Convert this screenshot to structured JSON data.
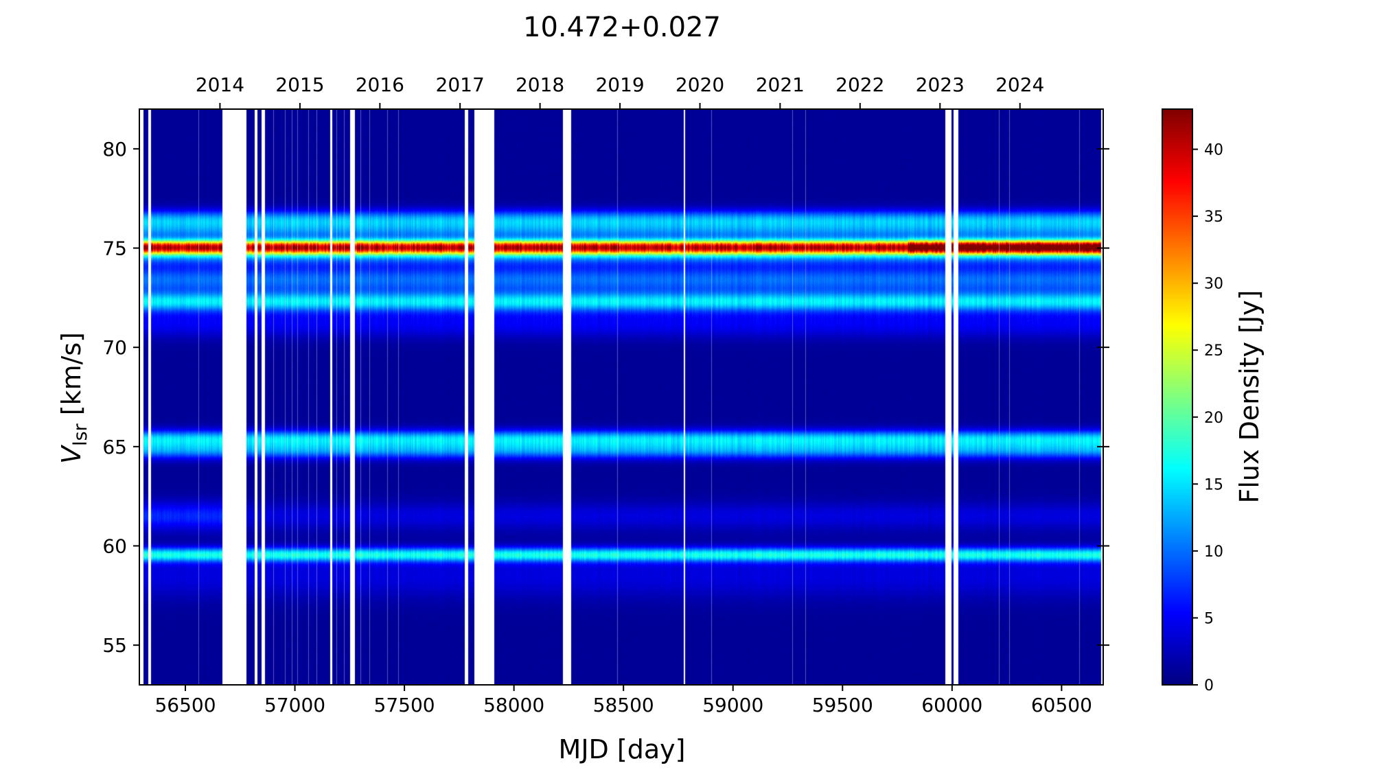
{
  "chart_data": {
    "type": "heatmap",
    "title": "10.472+0.027",
    "xlabel": "MJD [day]",
    "ylabel_main": "V",
    "ylabel_sub": "lsr",
    "ylabel_unit": " [km/s]",
    "colorbar_label": "Flux Density [Jy]",
    "colormap": "jet",
    "xlim": [
      56290,
      60690
    ],
    "ylim": [
      53,
      82
    ],
    "clim": [
      0,
      43
    ],
    "x_ticks": [
      56500,
      57000,
      57500,
      58000,
      58500,
      59000,
      59500,
      60000,
      60500
    ],
    "x_tick_labels": [
      "56500",
      "57000",
      "57500",
      "58000",
      "58500",
      "59000",
      "59500",
      "60000",
      "60500"
    ],
    "y_ticks": [
      55,
      60,
      65,
      70,
      75,
      80
    ],
    "y_tick_labels": [
      "55",
      "60",
      "65",
      "70",
      "75",
      "80"
    ],
    "top_axis": {
      "label_values_mjd": [
        56658,
        57023,
        57388,
        57754,
        58119,
        58484,
        58849,
        59215,
        59580,
        59945,
        60310
      ],
      "labels": [
        "2014",
        "2015",
        "2016",
        "2017",
        "2018",
        "2019",
        "2020",
        "2021",
        "2022",
        "2023",
        "2024"
      ]
    },
    "colorbar_ticks": [
      0,
      5,
      10,
      15,
      20,
      25,
      30,
      35,
      40
    ],
    "colorbar_tick_labels": [
      "0",
      "5",
      "10",
      "15",
      "20",
      "25",
      "30",
      "35",
      "40"
    ],
    "observation_span": [
      56310,
      60680
    ],
    "data_gaps_mjd": [
      [
        56300,
        56310
      ],
      [
        56330,
        56342
      ],
      [
        56668,
        56780
      ],
      [
        56815,
        56830
      ],
      [
        56848,
        56862
      ],
      [
        57160,
        57172
      ],
      [
        57252,
        57275
      ],
      [
        57775,
        57790
      ],
      [
        57820,
        57910
      ],
      [
        58225,
        58262
      ],
      [
        58774,
        58781
      ],
      [
        59970,
        59998
      ],
      [
        60008,
        60028
      ]
    ],
    "sparse_epochs_mjd": [
      56560,
      56900,
      56955,
      56985,
      57010,
      57060,
      57100,
      57190,
      57225,
      57300,
      57340,
      57420,
      57470,
      58470,
      58900,
      59270,
      59330,
      60215,
      60260,
      60580
    ],
    "emission_features": [
      {
        "velocity": 75.05,
        "peak_flux": 33,
        "width": 0.25,
        "note": "brightest feature, rising above 40 Jy after MJD 59800"
      },
      {
        "velocity": 74.7,
        "peak_flux": 10,
        "width": 0.4
      },
      {
        "velocity": 76.4,
        "peak_flux": 12,
        "width": 0.35
      },
      {
        "velocity": 75.8,
        "peak_flux": 7,
        "width": 0.3
      },
      {
        "velocity": 73.4,
        "peak_flux": 9,
        "width": 0.45
      },
      {
        "velocity": 72.3,
        "peak_flux": 14,
        "width": 0.35
      },
      {
        "velocity": 71.2,
        "peak_flux": 4,
        "width": 0.5
      },
      {
        "velocity": 65.4,
        "peak_flux": 13,
        "width": 0.3
      },
      {
        "velocity": 64.8,
        "peak_flux": 10,
        "width": 0.3
      },
      {
        "velocity": 61.5,
        "peak_flux": 6,
        "width": 0.5,
        "note": "fades after MJD 56700"
      },
      {
        "velocity": 59.55,
        "peak_flux": 15,
        "width": 0.25
      },
      {
        "velocity": 58.5,
        "peak_flux": 3,
        "width": 0.8
      }
    ]
  }
}
